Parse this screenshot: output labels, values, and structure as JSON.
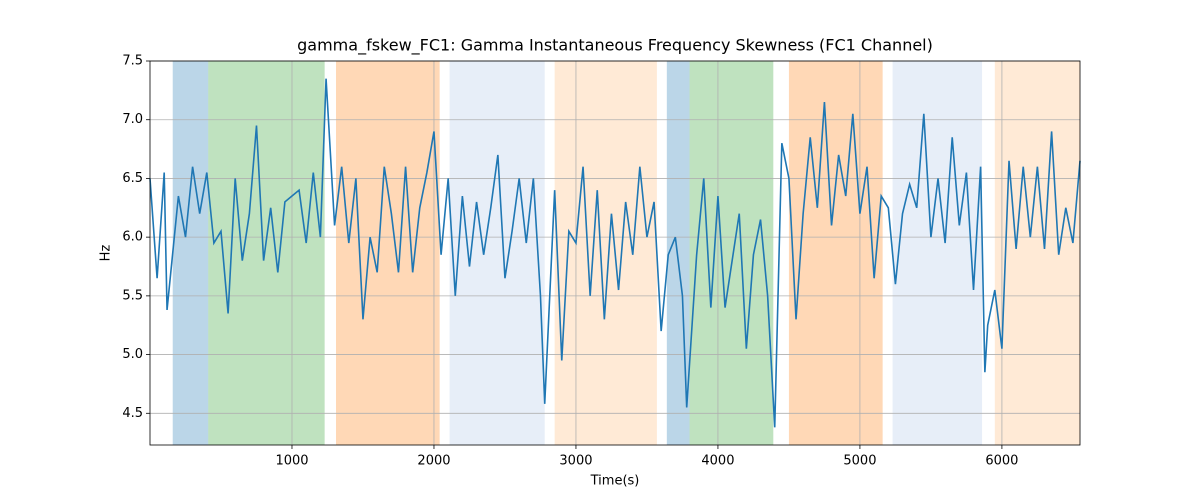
{
  "chart_data": {
    "type": "line",
    "title": "gamma_fskew_FC1: Gamma Instantaneous Frequency Skewness (FC1 Channel)",
    "xlabel": "Time(s)",
    "ylabel": "Hz",
    "xlim": [
      0,
      6550
    ],
    "ylim": [
      4.23,
      7.5
    ],
    "xticks": [
      1000,
      2000,
      3000,
      4000,
      5000,
      6000
    ],
    "yticks": [
      4.5,
      {
        "value": 5,
        "label": "5.0"
      },
      5.5,
      {
        "value": 6,
        "label": "6.0"
      },
      6.5,
      {
        "value": 7,
        "label": "7.0"
      },
      7.5
    ],
    "grid": true,
    "color": "#1f77b4",
    "span_alpha": 0.3,
    "spans": [
      {
        "start": 160,
        "end": 410,
        "color": "#1f77b4"
      },
      {
        "start": 410,
        "end": 1230,
        "color": "#2ca02c"
      },
      {
        "start": 1310,
        "end": 2040,
        "color": "#ff7f0e"
      },
      {
        "start": 2110,
        "end": 2780,
        "color": "#aec7e8"
      },
      {
        "start": 2850,
        "end": 3570,
        "color": "#ffbb78"
      },
      {
        "start": 3640,
        "end": 3800,
        "color": "#1f77b4"
      },
      {
        "start": 3800,
        "end": 4390,
        "color": "#2ca02c"
      },
      {
        "start": 4500,
        "end": 5160,
        "color": "#ff7f0e"
      },
      {
        "start": 5230,
        "end": 5860,
        "color": "#aec7e8"
      },
      {
        "start": 5950,
        "end": 6550,
        "color": "#ffbb78"
      }
    ],
    "x": [
      0,
      50,
      100,
      120,
      200,
      250,
      300,
      350,
      400,
      450,
      500,
      550,
      600,
      650,
      700,
      750,
      800,
      850,
      900,
      950,
      1000,
      1050,
      1100,
      1150,
      1200,
      1240,
      1300,
      1350,
      1400,
      1450,
      1500,
      1550,
      1600,
      1650,
      1700,
      1750,
      1800,
      1850,
      1900,
      1950,
      2000,
      2050,
      2100,
      2150,
      2200,
      2250,
      2300,
      2350,
      2400,
      2450,
      2500,
      2550,
      2600,
      2650,
      2700,
      2750,
      2780,
      2850,
      2900,
      2950,
      3000,
      3050,
      3100,
      3150,
      3200,
      3250,
      3300,
      3350,
      3400,
      3450,
      3500,
      3550,
      3600,
      3650,
      3700,
      3750,
      3780,
      3850,
      3900,
      3950,
      4000,
      4050,
      4100,
      4150,
      4200,
      4250,
      4300,
      4350,
      4400,
      4450,
      4500,
      4550,
      4600,
      4650,
      4700,
      4750,
      4800,
      4850,
      4900,
      4950,
      5000,
      5050,
      5100,
      5150,
      5200,
      5250,
      5300,
      5350,
      5400,
      5450,
      5500,
      5550,
      5600,
      5650,
      5700,
      5750,
      5800,
      5850,
      5880,
      5900,
      5950,
      6000,
      6050,
      6100,
      6150,
      6200,
      6250,
      6300,
      6350,
      6400,
      6450,
      6500,
      6550
    ],
    "values": [
      6.5,
      5.65,
      6.55,
      5.38,
      6.35,
      6.0,
      6.6,
      6.2,
      6.55,
      5.95,
      6.05,
      5.35,
      6.5,
      5.8,
      6.2,
      6.95,
      5.8,
      6.25,
      5.7,
      6.3,
      6.35,
      6.4,
      5.95,
      6.55,
      6.0,
      7.35,
      6.1,
      6.6,
      5.95,
      6.5,
      5.3,
      6.0,
      5.7,
      6.6,
      6.2,
      5.7,
      6.6,
      5.7,
      6.25,
      6.55,
      6.9,
      5.85,
      6.5,
      5.5,
      6.35,
      5.75,
      6.3,
      5.85,
      6.25,
      6.7,
      5.65,
      6.05,
      6.5,
      5.95,
      6.5,
      5.5,
      4.58,
      6.4,
      4.95,
      6.05,
      5.95,
      6.6,
      5.5,
      6.4,
      5.3,
      6.2,
      5.55,
      6.3,
      5.85,
      6.6,
      6.0,
      6.3,
      5.2,
      5.85,
      6.0,
      5.5,
      4.55,
      5.85,
      6.5,
      5.4,
      6.35,
      5.4,
      5.8,
      6.2,
      5.05,
      5.85,
      6.15,
      5.5,
      4.38,
      6.8,
      6.5,
      5.3,
      6.2,
      6.85,
      6.25,
      7.15,
      6.1,
      6.7,
      6.35,
      7.05,
      6.2,
      6.6,
      5.65,
      6.35,
      6.25,
      5.6,
      6.2,
      6.45,
      6.25,
      7.05,
      6.0,
      6.5,
      5.95,
      6.85,
      6.1,
      6.55,
      5.55,
      6.6,
      4.85,
      5.25,
      5.55,
      5.05,
      6.65,
      5.9,
      6.6,
      6.0,
      6.6,
      5.9,
      6.9,
      5.85,
      6.25,
      5.95,
      6.65
    ]
  }
}
